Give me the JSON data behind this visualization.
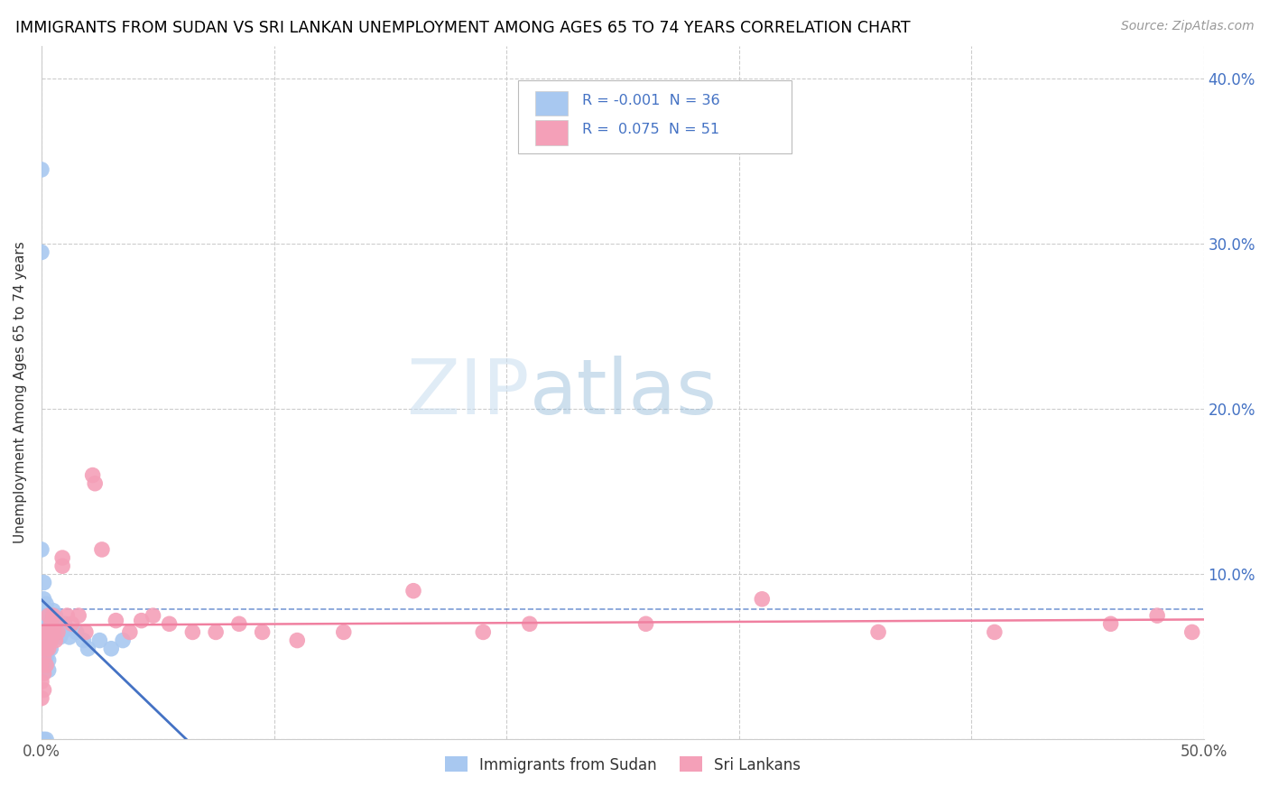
{
  "title": "IMMIGRANTS FROM SUDAN VS SRI LANKAN UNEMPLOYMENT AMONG AGES 65 TO 74 YEARS CORRELATION CHART",
  "source": "Source: ZipAtlas.com",
  "ylabel": "Unemployment Among Ages 65 to 74 years",
  "xlim": [
    0.0,
    0.5
  ],
  "ylim": [
    0.0,
    0.42
  ],
  "sudan_R": "-0.001",
  "sudan_N": "36",
  "srilanka_R": "0.075",
  "srilanka_N": "51",
  "sudan_color": "#a8c8f0",
  "srilanka_color": "#f4a0b8",
  "sudan_line_color": "#4472c4",
  "srilanka_line_color": "#f080a0",
  "sudan_points": [
    [
      0.0,
      0.345
    ],
    [
      0.0,
      0.295
    ],
    [
      0.0,
      0.115
    ],
    [
      0.001,
      0.095
    ],
    [
      0.001,
      0.085
    ],
    [
      0.001,
      0.075
    ],
    [
      0.001,
      0.068
    ],
    [
      0.002,
      0.082
    ],
    [
      0.002,
      0.068
    ],
    [
      0.002,
      0.058
    ],
    [
      0.002,
      0.05
    ],
    [
      0.003,
      0.062
    ],
    [
      0.003,
      0.055
    ],
    [
      0.003,
      0.048
    ],
    [
      0.003,
      0.042
    ],
    [
      0.004,
      0.072
    ],
    [
      0.004,
      0.065
    ],
    [
      0.004,
      0.055
    ],
    [
      0.005,
      0.078
    ],
    [
      0.005,
      0.068
    ],
    [
      0.006,
      0.075
    ],
    [
      0.006,
      0.065
    ],
    [
      0.007,
      0.07
    ],
    [
      0.008,
      0.062
    ],
    [
      0.009,
      0.065
    ],
    [
      0.01,
      0.07
    ],
    [
      0.012,
      0.062
    ],
    [
      0.015,
      0.065
    ],
    [
      0.018,
      0.06
    ],
    [
      0.02,
      0.055
    ],
    [
      0.025,
      0.06
    ],
    [
      0.03,
      0.055
    ],
    [
      0.035,
      0.06
    ],
    [
      0.0,
      0.0
    ],
    [
      0.001,
      0.0
    ],
    [
      0.002,
      0.0
    ]
  ],
  "srilanka_points": [
    [
      0.0,
      0.055
    ],
    [
      0.0,
      0.045
    ],
    [
      0.0,
      0.035
    ],
    [
      0.0,
      0.025
    ],
    [
      0.001,
      0.06
    ],
    [
      0.001,
      0.05
    ],
    [
      0.001,
      0.04
    ],
    [
      0.001,
      0.03
    ],
    [
      0.002,
      0.065
    ],
    [
      0.002,
      0.055
    ],
    [
      0.002,
      0.045
    ],
    [
      0.003,
      0.075
    ],
    [
      0.003,
      0.065
    ],
    [
      0.003,
      0.055
    ],
    [
      0.004,
      0.07
    ],
    [
      0.004,
      0.06
    ],
    [
      0.005,
      0.075
    ],
    [
      0.005,
      0.065
    ],
    [
      0.006,
      0.07
    ],
    [
      0.006,
      0.06
    ],
    [
      0.007,
      0.065
    ],
    [
      0.009,
      0.11
    ],
    [
      0.009,
      0.105
    ],
    [
      0.011,
      0.075
    ],
    [
      0.013,
      0.07
    ],
    [
      0.016,
      0.075
    ],
    [
      0.019,
      0.065
    ],
    [
      0.022,
      0.16
    ],
    [
      0.023,
      0.155
    ],
    [
      0.026,
      0.115
    ],
    [
      0.032,
      0.072
    ],
    [
      0.038,
      0.065
    ],
    [
      0.043,
      0.072
    ],
    [
      0.048,
      0.075
    ],
    [
      0.055,
      0.07
    ],
    [
      0.065,
      0.065
    ],
    [
      0.075,
      0.065
    ],
    [
      0.085,
      0.07
    ],
    [
      0.095,
      0.065
    ],
    [
      0.11,
      0.06
    ],
    [
      0.13,
      0.065
    ],
    [
      0.16,
      0.09
    ],
    [
      0.19,
      0.065
    ],
    [
      0.21,
      0.07
    ],
    [
      0.26,
      0.07
    ],
    [
      0.31,
      0.085
    ],
    [
      0.36,
      0.065
    ],
    [
      0.41,
      0.065
    ],
    [
      0.46,
      0.07
    ],
    [
      0.48,
      0.075
    ],
    [
      0.495,
      0.065
    ]
  ]
}
